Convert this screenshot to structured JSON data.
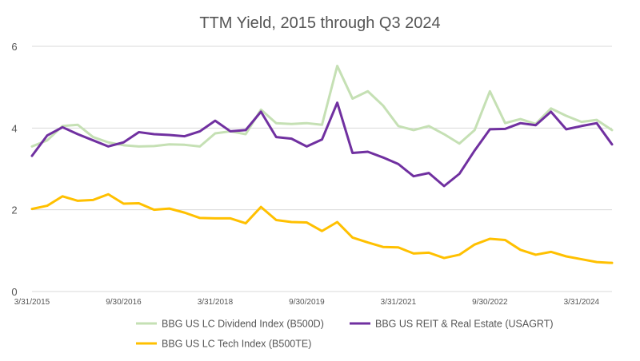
{
  "chart_data": {
    "type": "line",
    "title": "TTM Yield, 2015 through Q3 2024",
    "xlabel": "",
    "ylabel": "",
    "ylim": [
      0,
      6
    ],
    "yticks": [
      "0",
      "2",
      "4",
      "6"
    ],
    "grid": true,
    "legend_position": "bottom",
    "x_tick_labels": [
      "3/31/2015",
      "9/30/2016",
      "3/31/2018",
      "9/30/2019",
      "3/31/2021",
      "9/30/2022",
      "3/31/2024"
    ],
    "x": [
      "3/31/2015",
      "6/30/2015",
      "9/30/2015",
      "12/31/2015",
      "3/31/2016",
      "6/30/2016",
      "9/30/2016",
      "12/31/2016",
      "3/31/2017",
      "6/30/2017",
      "9/30/2017",
      "12/31/2017",
      "3/31/2018",
      "6/30/2018",
      "9/30/2018",
      "12/31/2018",
      "3/31/2019",
      "6/30/2019",
      "9/30/2019",
      "12/31/2019",
      "3/31/2020",
      "6/30/2020",
      "9/30/2020",
      "12/31/2020",
      "3/31/2021",
      "6/30/2021",
      "9/30/2021",
      "12/31/2021",
      "3/31/2022",
      "6/30/2022",
      "9/30/2022",
      "12/31/2022",
      "3/31/2023",
      "6/30/2023",
      "9/30/2023",
      "12/31/2023",
      "3/31/2024",
      "6/30/2024",
      "9/30/2024"
    ],
    "series": [
      {
        "name": "BBG US LC Dividend Index (B500D)",
        "color": "#c5e0b4",
        "values": [
          3.55,
          3.7,
          4.05,
          4.08,
          3.78,
          3.65,
          3.58,
          3.55,
          3.56,
          3.6,
          3.59,
          3.55,
          3.87,
          3.92,
          3.85,
          4.45,
          4.12,
          4.1,
          4.12,
          4.08,
          5.52,
          4.72,
          4.9,
          4.55,
          4.05,
          3.95,
          4.05,
          3.85,
          3.62,
          3.95,
          4.9,
          4.12,
          4.22,
          4.1,
          4.48,
          4.3,
          4.15,
          4.2,
          3.95
        ]
      },
      {
        "name": "BBG US REIT & Real Estate (USAGRT)",
        "color": "#7030a0",
        "values": [
          3.32,
          3.82,
          4.02,
          3.85,
          3.7,
          3.55,
          3.65,
          3.9,
          3.85,
          3.83,
          3.8,
          3.92,
          4.18,
          3.92,
          3.95,
          4.4,
          3.78,
          3.74,
          3.55,
          3.72,
          4.62,
          3.39,
          3.42,
          3.28,
          3.12,
          2.82,
          2.9,
          2.58,
          2.88,
          3.45,
          3.97,
          3.98,
          4.12,
          4.07,
          4.4,
          3.97,
          4.05,
          4.12,
          3.6
        ]
      },
      {
        "name": "BBG US LC Tech Index (B500TE)",
        "color": "#ffc000",
        "values": [
          2.02,
          2.1,
          2.33,
          2.22,
          2.24,
          2.38,
          2.15,
          2.16,
          2.0,
          2.03,
          1.93,
          1.8,
          1.79,
          1.79,
          1.67,
          2.07,
          1.75,
          1.7,
          1.69,
          1.48,
          1.7,
          1.32,
          1.2,
          1.09,
          1.08,
          0.93,
          0.95,
          0.82,
          0.9,
          1.15,
          1.29,
          1.26,
          1.02,
          0.9,
          0.97,
          0.86,
          0.79,
          0.72,
          0.7
        ]
      }
    ]
  }
}
